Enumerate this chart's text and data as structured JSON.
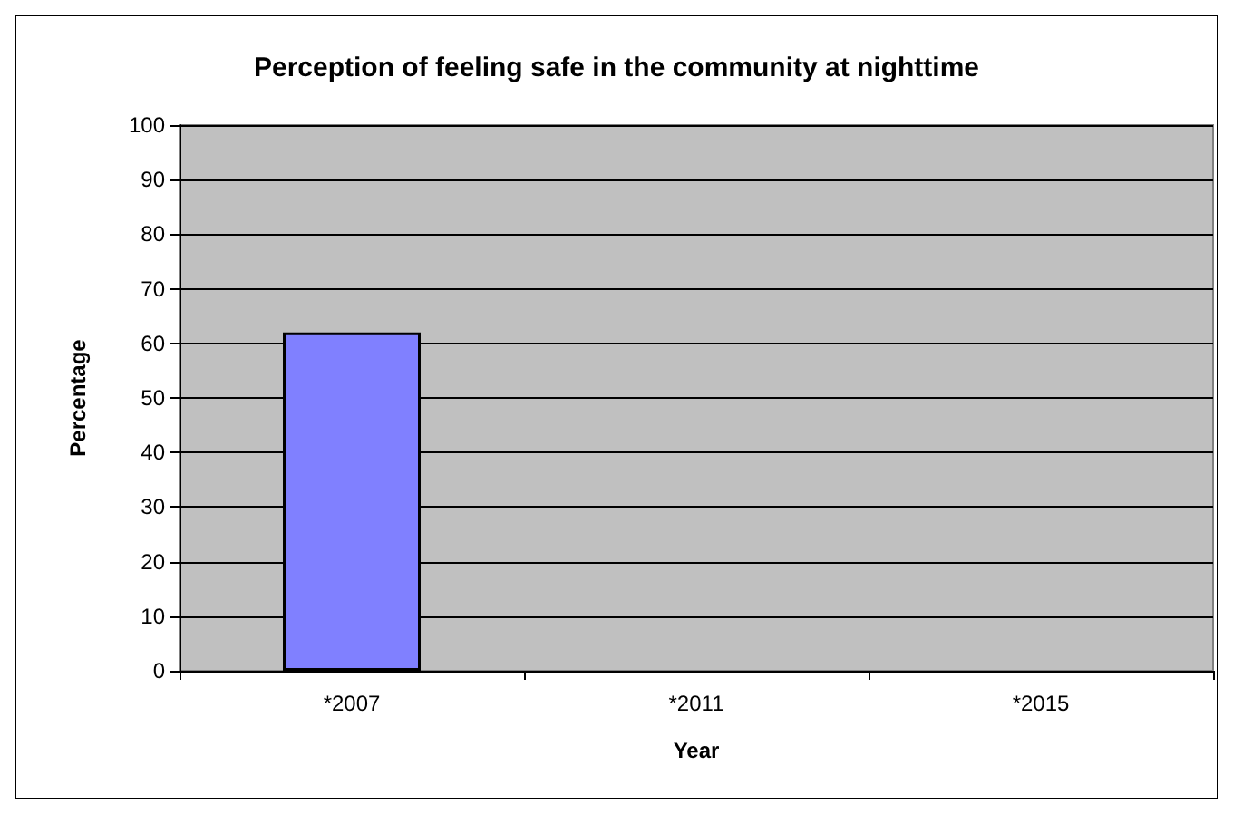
{
  "chart_data": {
    "type": "bar",
    "title": "Perception of feeling safe in the community at nighttime",
    "xlabel": "Year",
    "ylabel": "Percentage",
    "categories": [
      "*2007",
      "*2011",
      "*2015"
    ],
    "series": [
      {
        "color": "#8080ff",
        "values": [
          62,
          null,
          null
        ]
      }
    ],
    "ylim": [
      0,
      100
    ],
    "yticks": [
      0,
      10,
      20,
      30,
      40,
      50,
      60,
      70,
      80,
      90,
      100
    ],
    "grid": "y"
  }
}
